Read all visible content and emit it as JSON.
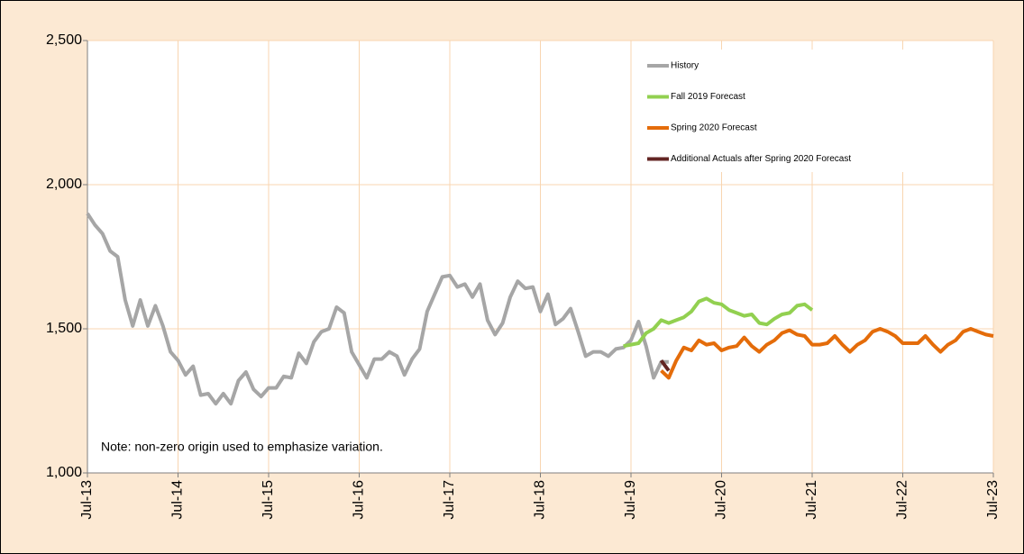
{
  "chart_data": {
    "type": "line",
    "note": "Note: non-zero origin used to emphasize variation.",
    "categories": [
      "Jul-13",
      null,
      null,
      null,
      null,
      null,
      null,
      null,
      null,
      null,
      null,
      null,
      "Jul-14",
      null,
      null,
      null,
      null,
      null,
      null,
      null,
      null,
      null,
      null,
      null,
      "Jul-15",
      null,
      null,
      null,
      null,
      null,
      null,
      null,
      null,
      null,
      null,
      null,
      "Jul-16",
      null,
      null,
      null,
      null,
      null,
      null,
      null,
      null,
      null,
      null,
      null,
      "Jul-17",
      null,
      null,
      null,
      null,
      null,
      null,
      null,
      null,
      null,
      null,
      null,
      "Jul-18",
      null,
      null,
      null,
      null,
      null,
      null,
      null,
      null,
      null,
      null,
      null,
      "Jul-19",
      null,
      null,
      null,
      null,
      null,
      null,
      null,
      null,
      null,
      null,
      null,
      "Jul-20",
      null,
      null,
      null,
      null,
      null,
      null,
      null,
      null,
      null,
      null,
      null,
      "Jul-21",
      null,
      null,
      null,
      null,
      null,
      null,
      null,
      null,
      null,
      null,
      null,
      "Jul-22",
      null,
      null,
      null,
      null,
      null,
      null,
      null,
      null,
      null,
      null,
      null,
      "Jul-23"
    ],
    "series": [
      {
        "name": "History",
        "color": "#a6a6a6",
        "values": [
          1900,
          1860,
          1830,
          1770,
          1750,
          1600,
          1510,
          1600,
          1510,
          1580,
          1510,
          1420,
          1390,
          1340,
          1370,
          1270,
          1275,
          1240,
          1275,
          1240,
          1320,
          1350,
          1290,
          1265,
          1295,
          1295,
          1335,
          1330,
          1415,
          1380,
          1455,
          1490,
          1500,
          1575,
          1555,
          1420,
          1375,
          1330,
          1395,
          1395,
          1420,
          1405,
          1340,
          1395,
          1430,
          1560,
          1620,
          1680,
          1685,
          1645,
          1655,
          1610,
          1655,
          1530,
          1480,
          1520,
          1610,
          1665,
          1640,
          1645,
          1560,
          1620,
          1515,
          1535,
          1570,
          1490,
          1405,
          1420,
          1420,
          1405,
          1430,
          1435,
          1460,
          1525,
          1440,
          1330,
          1385,
          1385,
          null,
          null,
          null,
          null,
          null,
          null,
          null,
          null,
          null,
          null,
          null,
          null,
          null,
          null,
          null,
          null,
          null,
          null,
          null,
          null,
          null,
          null,
          null,
          null,
          null,
          null,
          null,
          null,
          null,
          null,
          null,
          null,
          null,
          null,
          null,
          null,
          null,
          null,
          null,
          null,
          null,
          null,
          null
        ]
      },
      {
        "name": "Fall 2019 Forecast",
        "color": "#92d050",
        "values": [
          null,
          null,
          null,
          null,
          null,
          null,
          null,
          null,
          null,
          null,
          null,
          null,
          null,
          null,
          null,
          null,
          null,
          null,
          null,
          null,
          null,
          null,
          null,
          null,
          null,
          null,
          null,
          null,
          null,
          null,
          null,
          null,
          null,
          null,
          null,
          null,
          null,
          null,
          null,
          null,
          null,
          null,
          null,
          null,
          null,
          null,
          null,
          null,
          null,
          null,
          null,
          null,
          null,
          null,
          null,
          null,
          null,
          null,
          null,
          null,
          null,
          null,
          null,
          null,
          null,
          null,
          null,
          null,
          null,
          null,
          null,
          1440,
          1445,
          1450,
          1485,
          1500,
          1530,
          1520,
          1530,
          1540,
          1560,
          1595,
          1605,
          1590,
          1585,
          1565,
          1555,
          1545,
          1550,
          1520,
          1515,
          1535,
          1550,
          1555,
          1580,
          1585,
          1565,
          null,
          null,
          null,
          null,
          null,
          null,
          null,
          null,
          null,
          null,
          null,
          null,
          null,
          null,
          null,
          null,
          null,
          null,
          null,
          null,
          null,
          null,
          null,
          null
        ]
      },
      {
        "name": "Spring 2020 Forecast",
        "color": "#e46c0a",
        "values": [
          null,
          null,
          null,
          null,
          null,
          null,
          null,
          null,
          null,
          null,
          null,
          null,
          null,
          null,
          null,
          null,
          null,
          null,
          null,
          null,
          null,
          null,
          null,
          null,
          null,
          null,
          null,
          null,
          null,
          null,
          null,
          null,
          null,
          null,
          null,
          null,
          null,
          null,
          null,
          null,
          null,
          null,
          null,
          null,
          null,
          null,
          null,
          null,
          null,
          null,
          null,
          null,
          null,
          null,
          null,
          null,
          null,
          null,
          null,
          null,
          null,
          null,
          null,
          null,
          null,
          null,
          null,
          null,
          null,
          null,
          null,
          null,
          null,
          null,
          null,
          null,
          1355,
          1330,
          1390,
          1435,
          1425,
          1460,
          1445,
          1450,
          1425,
          1435,
          1440,
          1470,
          1440,
          1420,
          1445,
          1460,
          1485,
          1495,
          1480,
          1475,
          1445,
          1445,
          1450,
          1475,
          1445,
          1420,
          1445,
          1460,
          1490,
          1500,
          1490,
          1475,
          1450,
          1450,
          1450,
          1475,
          1445,
          1420,
          1445,
          1460,
          1490,
          1500,
          1490,
          1480,
          1475
        ]
      },
      {
        "name": "Additional Actuals after Spring 2020 Forecast",
        "color": "#632523",
        "values": [
          null,
          null,
          null,
          null,
          null,
          null,
          null,
          null,
          null,
          null,
          null,
          null,
          null,
          null,
          null,
          null,
          null,
          null,
          null,
          null,
          null,
          null,
          null,
          null,
          null,
          null,
          null,
          null,
          null,
          null,
          null,
          null,
          null,
          null,
          null,
          null,
          null,
          null,
          null,
          null,
          null,
          null,
          null,
          null,
          null,
          null,
          null,
          null,
          null,
          null,
          null,
          null,
          null,
          null,
          null,
          null,
          null,
          null,
          null,
          null,
          null,
          null,
          null,
          null,
          null,
          null,
          null,
          null,
          null,
          null,
          null,
          null,
          null,
          null,
          null,
          null,
          1390,
          1355,
          null,
          null,
          null,
          null,
          null,
          null,
          null,
          null,
          null,
          null,
          null,
          null,
          null,
          null,
          null,
          null,
          null,
          null,
          null,
          null,
          null,
          null,
          null,
          null,
          null,
          null,
          null,
          null,
          null,
          null,
          null,
          null,
          null,
          null,
          null,
          null,
          null,
          null,
          null,
          null,
          null,
          null,
          null
        ]
      }
    ],
    "ylim": [
      1000,
      2500
    ],
    "yticks": [
      {
        "value": 1000,
        "label": "1,000"
      },
      {
        "value": 1500,
        "label": "1,500"
      },
      {
        "value": 2000,
        "label": "2,000"
      },
      {
        "value": 2500,
        "label": "2,500"
      }
    ],
    "grid": true,
    "legend": "upper right"
  }
}
